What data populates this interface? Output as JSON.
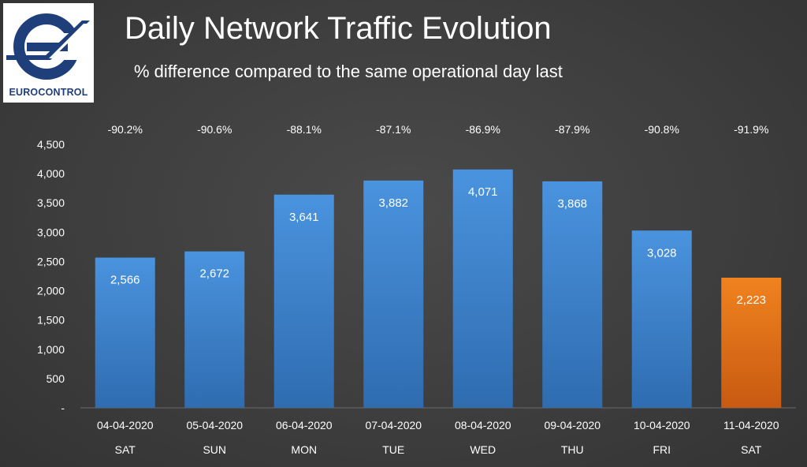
{
  "logo": {
    "text": "EUROCONTROL"
  },
  "header": {
    "title": "Daily Network Traffic Evolution",
    "subtitle": "% difference compared to the same operational day last"
  },
  "colors": {
    "bar": "#3f86d2",
    "bar_dark": "#2f6cb0",
    "highlight_bar": "#e8761f",
    "highlight_bar_dark": "#c85a12",
    "background": "#3f3f3f",
    "text": "#ffffff"
  },
  "chart_data": {
    "type": "bar",
    "title": "Daily Network Traffic Evolution",
    "subtitle": "% difference compared to the same operational day last",
    "categories": [
      "04-04-2020",
      "05-04-2020",
      "06-04-2020",
      "07-04-2020",
      "08-04-2020",
      "09-04-2020",
      "10-04-2020",
      "11-04-2020"
    ],
    "day_labels": [
      "SAT",
      "SUN",
      "MON",
      "TUE",
      "WED",
      "THU",
      "FRI",
      "SAT"
    ],
    "values": [
      2566,
      2672,
      3641,
      3882,
      4071,
      3868,
      3028,
      2223
    ],
    "value_labels": [
      "2,566",
      "2,672",
      "3,641",
      "3,882",
      "4,071",
      "3,868",
      "3,028",
      "2,223"
    ],
    "pct_diff_labels": [
      "-90.2%",
      "-90.6%",
      "-88.1%",
      "-87.1%",
      "-86.9%",
      "-87.9%",
      "-90.8%",
      "-91.9%"
    ],
    "highlighted_index": 7,
    "ylim": [
      0,
      4500
    ],
    "yticks": [
      0,
      500,
      1000,
      1500,
      2000,
      2500,
      3000,
      3500,
      4000,
      4500
    ],
    "ytick_labels": [
      "-",
      "500",
      "1,000",
      "1,500",
      "2,000",
      "2,500",
      "3,000",
      "3,500",
      "4,000",
      "4,500"
    ],
    "xlabel": "",
    "ylabel": "",
    "grid": false,
    "legend": "none"
  }
}
